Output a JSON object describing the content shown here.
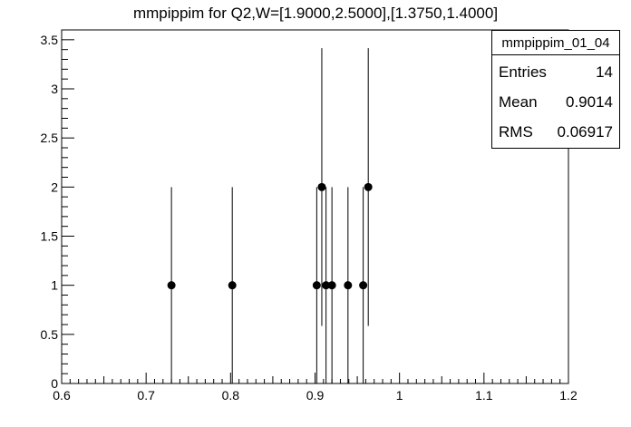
{
  "title": "mmpippim for Q2,W=[1.9000,2.5000],[1.3750,1.4000]",
  "stats": {
    "name": "mmpippim_01_04",
    "rows": [
      {
        "label": "Entries",
        "value": "14"
      },
      {
        "label": "Mean",
        "value": "0.9014"
      },
      {
        "label": "RMS",
        "value": "0.06917"
      }
    ]
  },
  "chart_data": {
    "type": "scatter",
    "title": "mmpippim for Q2,W=[1.9000,2.5000],[1.3750,1.4000]",
    "xlabel": "",
    "ylabel": "",
    "xlim": [
      0.6,
      1.2
    ],
    "ylim": [
      0,
      3.6
    ],
    "grid": false,
    "x_ticks": [
      "0.6",
      "0.7",
      "0.8",
      "0.9",
      "1",
      "1.1",
      "1.2"
    ],
    "y_ticks": [
      "0",
      "0.5",
      "1",
      "1.5",
      "2",
      "2.5",
      "3",
      "3.5"
    ],
    "series": [
      {
        "marker": "circle",
        "color": "#000000",
        "points": [
          {
            "x": 0.73,
            "y": 1,
            "err": 1
          },
          {
            "x": 0.802,
            "y": 1,
            "err": 1
          },
          {
            "x": 0.902,
            "y": 1,
            "err": 1
          },
          {
            "x": 0.908,
            "y": 2,
            "err": 1.414
          },
          {
            "x": 0.913,
            "y": 1,
            "err": 1
          },
          {
            "x": 0.92,
            "y": 1,
            "err": 1
          },
          {
            "x": 0.939,
            "y": 1,
            "err": 1
          },
          {
            "x": 0.957,
            "y": 1,
            "err": 1
          },
          {
            "x": 0.963,
            "y": 2,
            "err": 1.414
          }
        ]
      }
    ]
  }
}
